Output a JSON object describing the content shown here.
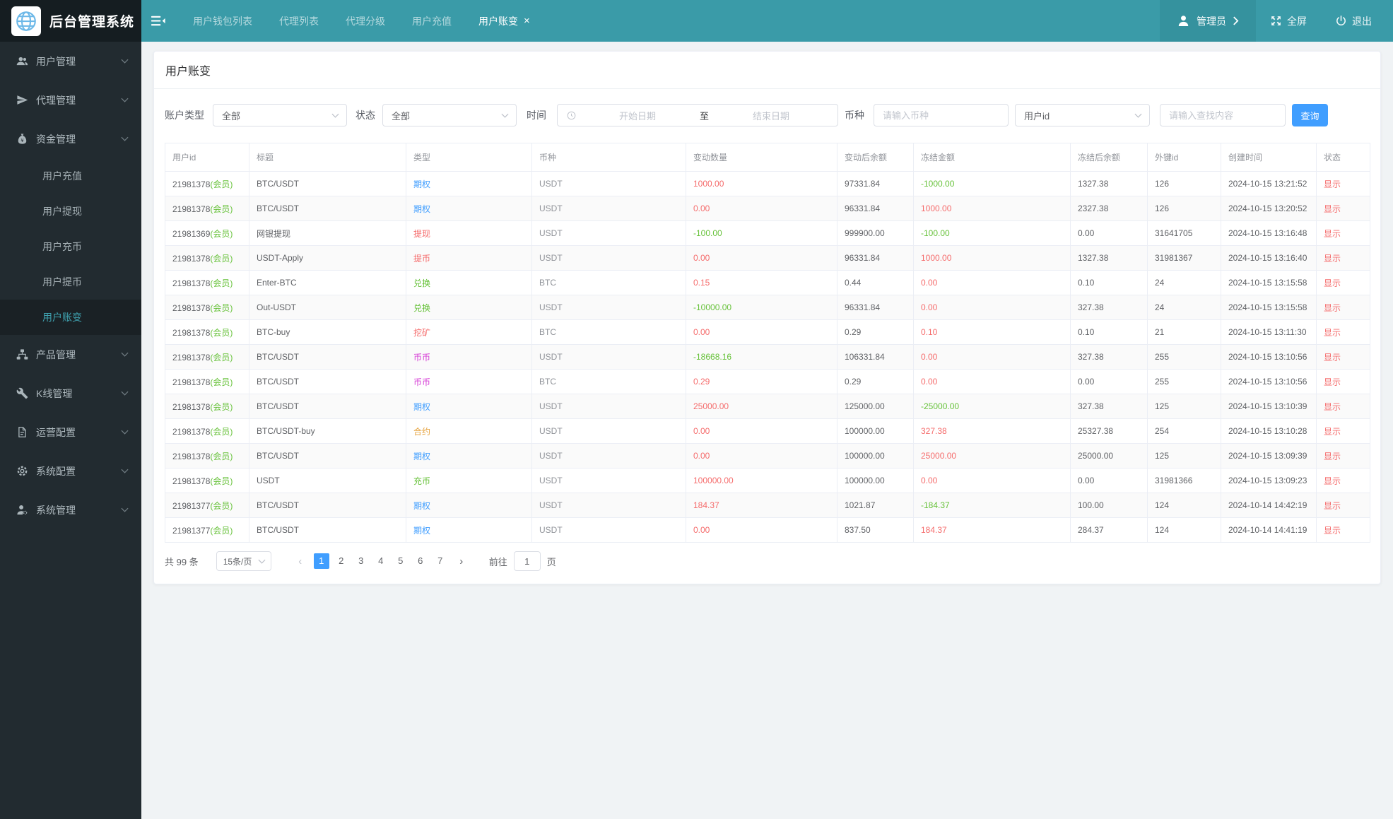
{
  "brand": {
    "title": "后台管理系统",
    "logo_icon": "globe-icon"
  },
  "topbar": {
    "toggle_icon": "sidebar-toggle-icon",
    "tabs": [
      {
        "label": "用户钱包列表",
        "active": false
      },
      {
        "label": "代理列表",
        "active": false
      },
      {
        "label": "代理分级",
        "active": false
      },
      {
        "label": "用户充值",
        "active": false
      },
      {
        "label": "用户账变",
        "active": true,
        "closable": true
      }
    ],
    "user_label": "管理员",
    "fullscreen_label": "全屏",
    "logout_label": "退出"
  },
  "sidebar": {
    "items": [
      {
        "label": "用户管理",
        "icon": "users-icon",
        "expandable": true
      },
      {
        "label": "代理管理",
        "icon": "send-icon",
        "expandable": true
      },
      {
        "label": "资金管理",
        "icon": "money-bag-icon",
        "expandable": true,
        "expanded": true,
        "children": [
          {
            "label": "用户充值",
            "active": false
          },
          {
            "label": "用户提现",
            "active": false
          },
          {
            "label": "用户充币",
            "active": false
          },
          {
            "label": "用户提币",
            "active": false
          },
          {
            "label": "用户账变",
            "active": true
          }
        ]
      },
      {
        "label": "产品管理",
        "icon": "sitemap-icon",
        "expandable": true
      },
      {
        "label": "K线管理",
        "icon": "wrench-icon",
        "expandable": true
      },
      {
        "label": "运营配置",
        "icon": "document-icon",
        "expandable": true
      },
      {
        "label": "系统配置",
        "icon": "gear-icon",
        "expandable": true
      },
      {
        "label": "系统管理",
        "icon": "user-gear-icon",
        "expandable": true
      }
    ]
  },
  "page": {
    "title": "用户账变",
    "filters": {
      "account_type_label": "账户类型",
      "account_type_value": "全部",
      "status_label": "状态",
      "status_value": "全部",
      "time_label": "时间",
      "start_placeholder": "开始日期",
      "range_separator": "至",
      "end_placeholder": "结束日期",
      "coin_label": "币种",
      "coin_placeholder": "请输入币种",
      "search_type_value": "用户id",
      "search_placeholder": "请输入查找内容",
      "search_button": "查询"
    },
    "table": {
      "columns": [
        "用户id",
        "标题",
        "类型",
        "币种",
        "变动数量",
        "变动后余额",
        "冻结金额",
        "冻结后余额",
        "外键id",
        "创建时间",
        "状态"
      ],
      "rows": [
        {
          "user_id": "21981378",
          "member": "(会员)",
          "title": "BTC/USDT",
          "type": "期权",
          "type_color": "blue",
          "coin": "USDT",
          "change": "1000.00",
          "change_color": "red",
          "after_balance": "97331.84",
          "frozen_change": "-1000.00",
          "frozen_color": "green",
          "frozen_after": "1327.38",
          "foreign_id": "126",
          "created_at": "2024-10-15 13:21:52",
          "status": "显示"
        },
        {
          "user_id": "21981378",
          "member": "(会员)",
          "title": "BTC/USDT",
          "type": "期权",
          "type_color": "blue",
          "coin": "USDT",
          "change": "0.00",
          "change_color": "red",
          "after_balance": "96331.84",
          "frozen_change": "1000.00",
          "frozen_color": "red",
          "frozen_after": "2327.38",
          "foreign_id": "126",
          "created_at": "2024-10-15 13:20:52",
          "status": "显示"
        },
        {
          "user_id": "21981369",
          "member": "(会员)",
          "title": "网银提现",
          "type": "提现",
          "type_color": "red",
          "coin": "USDT",
          "change": "-100.00",
          "change_color": "green",
          "after_balance": "999900.00",
          "frozen_change": "-100.00",
          "frozen_color": "green",
          "frozen_after": "0.00",
          "foreign_id": "31641705",
          "created_at": "2024-10-15 13:16:48",
          "status": "显示"
        },
        {
          "user_id": "21981378",
          "member": "(会员)",
          "title": "USDT-Apply",
          "type": "提币",
          "type_color": "red",
          "coin": "USDT",
          "change": "0.00",
          "change_color": "red",
          "after_balance": "96331.84",
          "frozen_change": "1000.00",
          "frozen_color": "red",
          "frozen_after": "1327.38",
          "foreign_id": "31981367",
          "created_at": "2024-10-15 13:16:40",
          "status": "显示"
        },
        {
          "user_id": "21981378",
          "member": "(会员)",
          "title": "Enter-BTC",
          "type": "兑换",
          "type_color": "green",
          "coin": "BTC",
          "change": "0.15",
          "change_color": "red",
          "after_balance": "0.44",
          "frozen_change": "0.00",
          "frozen_color": "red",
          "frozen_after": "0.10",
          "foreign_id": "24",
          "created_at": "2024-10-15 13:15:58",
          "status": "显示"
        },
        {
          "user_id": "21981378",
          "member": "(会员)",
          "title": "Out-USDT",
          "type": "兑换",
          "type_color": "green",
          "coin": "USDT",
          "change": "-10000.00",
          "change_color": "green",
          "after_balance": "96331.84",
          "frozen_change": "0.00",
          "frozen_color": "red",
          "frozen_after": "327.38",
          "foreign_id": "24",
          "created_at": "2024-10-15 13:15:58",
          "status": "显示"
        },
        {
          "user_id": "21981378",
          "member": "(会员)",
          "title": "BTC-buy",
          "type": "挖矿",
          "type_color": "red",
          "coin": "BTC",
          "change": "0.00",
          "change_color": "red",
          "after_balance": "0.29",
          "frozen_change": "0.10",
          "frozen_color": "red",
          "frozen_after": "0.10",
          "foreign_id": "21",
          "created_at": "2024-10-15 13:11:30",
          "status": "显示"
        },
        {
          "user_id": "21981378",
          "member": "(会员)",
          "title": "BTC/USDT",
          "type": "币币",
          "type_color": "magenta",
          "coin": "USDT",
          "change": "-18668.16",
          "change_color": "green",
          "after_balance": "106331.84",
          "frozen_change": "0.00",
          "frozen_color": "red",
          "frozen_after": "327.38",
          "foreign_id": "255",
          "created_at": "2024-10-15 13:10:56",
          "status": "显示"
        },
        {
          "user_id": "21981378",
          "member": "(会员)",
          "title": "BTC/USDT",
          "type": "币币",
          "type_color": "magenta",
          "coin": "BTC",
          "change": "0.29",
          "change_color": "red",
          "after_balance": "0.29",
          "frozen_change": "0.00",
          "frozen_color": "red",
          "frozen_after": "0.00",
          "foreign_id": "255",
          "created_at": "2024-10-15 13:10:56",
          "status": "显示"
        },
        {
          "user_id": "21981378",
          "member": "(会员)",
          "title": "BTC/USDT",
          "type": "期权",
          "type_color": "blue",
          "coin": "USDT",
          "change": "25000.00",
          "change_color": "red",
          "after_balance": "125000.00",
          "frozen_change": "-25000.00",
          "frozen_color": "green",
          "frozen_after": "327.38",
          "foreign_id": "125",
          "created_at": "2024-10-15 13:10:39",
          "status": "显示"
        },
        {
          "user_id": "21981378",
          "member": "(会员)",
          "title": "BTC/USDT-buy",
          "type": "合约",
          "type_color": "orange",
          "coin": "USDT",
          "change": "0.00",
          "change_color": "red",
          "after_balance": "100000.00",
          "frozen_change": "327.38",
          "frozen_color": "red",
          "frozen_after": "25327.38",
          "foreign_id": "254",
          "created_at": "2024-10-15 13:10:28",
          "status": "显示"
        },
        {
          "user_id": "21981378",
          "member": "(会员)",
          "title": "BTC/USDT",
          "type": "期权",
          "type_color": "blue",
          "coin": "USDT",
          "change": "0.00",
          "change_color": "red",
          "after_balance": "100000.00",
          "frozen_change": "25000.00",
          "frozen_color": "red",
          "frozen_after": "25000.00",
          "foreign_id": "125",
          "created_at": "2024-10-15 13:09:39",
          "status": "显示"
        },
        {
          "user_id": "21981378",
          "member": "(会员)",
          "title": "USDT",
          "type": "充币",
          "type_color": "green",
          "coin": "USDT",
          "change": "100000.00",
          "change_color": "red",
          "after_balance": "100000.00",
          "frozen_change": "0.00",
          "frozen_color": "red",
          "frozen_after": "0.00",
          "foreign_id": "31981366",
          "created_at": "2024-10-15 13:09:23",
          "status": "显示"
        },
        {
          "user_id": "21981377",
          "member": "(会员)",
          "title": "BTC/USDT",
          "type": "期权",
          "type_color": "blue",
          "coin": "USDT",
          "change": "184.37",
          "change_color": "red",
          "after_balance": "1021.87",
          "frozen_change": "-184.37",
          "frozen_color": "green",
          "frozen_after": "100.00",
          "foreign_id": "124",
          "created_at": "2024-10-14 14:42:19",
          "status": "显示"
        },
        {
          "user_id": "21981377",
          "member": "(会员)",
          "title": "BTC/USDT",
          "type": "期权",
          "type_color": "blue",
          "coin": "USDT",
          "change": "0.00",
          "change_color": "red",
          "after_balance": "837.50",
          "frozen_change": "184.37",
          "frozen_color": "red",
          "frozen_after": "284.37",
          "foreign_id": "124",
          "created_at": "2024-10-14 14:41:19",
          "status": "显示"
        }
      ]
    },
    "pagination": {
      "total": "共 99 条",
      "page_size": "15条/页",
      "pages": [
        "1",
        "2",
        "3",
        "4",
        "5",
        "6",
        "7"
      ],
      "active_page": "1",
      "goto_label": "前往",
      "goto_value": "1",
      "page_suffix": "页"
    }
  },
  "colors": {
    "header_teal": "#3a9ba8",
    "header_user_box": "#35929e",
    "sidebar_bg": "#222b30",
    "sidebar_active_text": "#3fa2b0",
    "accent_blue": "#409eff",
    "positive_red": "#f56c6c",
    "negative_green": "#67c23a",
    "type_magenta": "#d53ad5",
    "type_orange": "#e6a23c"
  }
}
